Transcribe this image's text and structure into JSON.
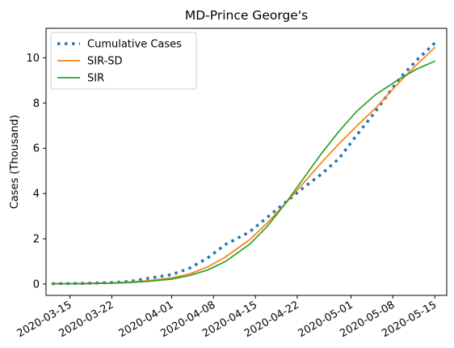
{
  "chart_data": {
    "type": "line",
    "title": "MD-Prince George's",
    "xlabel": "",
    "ylabel": "Cases (Thousand)",
    "x_type": "date",
    "xlim": [
      "2020-03-11",
      "2020-05-17"
    ],
    "ylim": [
      -0.5,
      11.3
    ],
    "x_ticks": [
      "2020-03-15",
      "2020-03-22",
      "2020-04-01",
      "2020-04-08",
      "2020-04-15",
      "2020-04-22",
      "2020-05-01",
      "2020-05-08",
      "2020-05-15"
    ],
    "y_ticks": [
      0,
      2,
      4,
      6,
      8,
      10
    ],
    "grid": false,
    "legend_position": "top-left",
    "series": [
      {
        "name": "Cumulative Cases",
        "style": "dotted",
        "color": "#1f77b4",
        "x": [
          "2020-03-12",
          "2020-03-17",
          "2020-03-22",
          "2020-03-25",
          "2020-03-28",
          "2020-04-01",
          "2020-04-04",
          "2020-04-07",
          "2020-04-10",
          "2020-04-14",
          "2020-04-17",
          "2020-04-20",
          "2020-04-23",
          "2020-04-26",
          "2020-04-29",
          "2020-05-02",
          "2020-05-05",
          "2020-05-09",
          "2020-05-12",
          "2020-05-15"
        ],
        "y": [
          0.02,
          0.03,
          0.07,
          0.12,
          0.25,
          0.42,
          0.7,
          1.15,
          1.75,
          2.3,
          2.95,
          3.6,
          4.25,
          4.85,
          5.55,
          6.6,
          7.6,
          9.05,
          9.9,
          10.65
        ]
      },
      {
        "name": "SIR-SD",
        "style": "solid",
        "color": "#ff7f0e",
        "x": [
          "2020-03-12",
          "2020-03-17",
          "2020-03-22",
          "2020-03-25",
          "2020-03-28",
          "2020-04-01",
          "2020-04-04",
          "2020-04-07",
          "2020-04-10",
          "2020-04-14",
          "2020-04-17",
          "2020-04-20",
          "2020-04-23",
          "2020-04-26",
          "2020-04-29",
          "2020-05-02",
          "2020-05-05",
          "2020-05-09",
          "2020-05-12",
          "2020-05-15"
        ],
        "y": [
          0.02,
          0.03,
          0.05,
          0.09,
          0.15,
          0.27,
          0.45,
          0.75,
          1.2,
          1.95,
          2.7,
          3.55,
          4.45,
          5.35,
          6.2,
          7.0,
          7.75,
          8.9,
          9.7,
          10.45
        ]
      },
      {
        "name": "SIR",
        "style": "solid",
        "color": "#2ca02c",
        "x": [
          "2020-03-12",
          "2020-03-17",
          "2020-03-22",
          "2020-03-25",
          "2020-03-28",
          "2020-04-01",
          "2020-04-04",
          "2020-04-07",
          "2020-04-10",
          "2020-04-14",
          "2020-04-17",
          "2020-04-20",
          "2020-04-23",
          "2020-04-26",
          "2020-04-29",
          "2020-05-02",
          "2020-05-05",
          "2020-05-09",
          "2020-05-12",
          "2020-05-15"
        ],
        "y": [
          0.01,
          0.02,
          0.04,
          0.07,
          0.12,
          0.22,
          0.38,
          0.62,
          1.0,
          1.75,
          2.55,
          3.55,
          4.65,
          5.75,
          6.75,
          7.65,
          8.35,
          9.05,
          9.5,
          9.85
        ]
      }
    ]
  }
}
